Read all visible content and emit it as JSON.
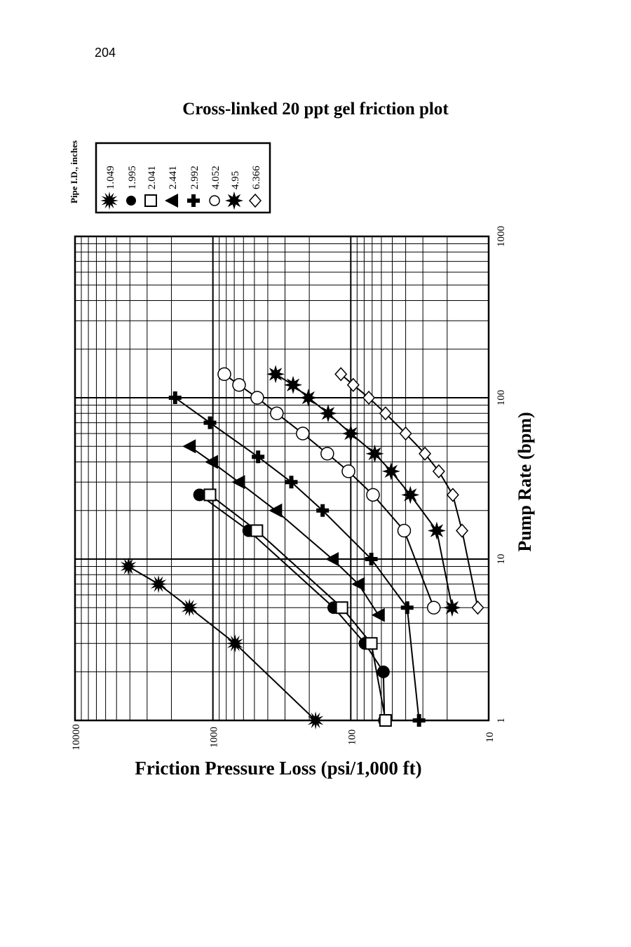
{
  "page_number": "204",
  "chart_data": {
    "type": "line",
    "title": "Cross-linked 20 ppt gel friction plot",
    "x_label": "Pump Rate (bpm)",
    "y_label": "Friction Pressure Loss (psi/1,000 ft)",
    "legend_title": "Pipe I.D., inches",
    "log_scale": true,
    "grid": true,
    "xlim": [
      1,
      1000
    ],
    "xticks": [
      1,
      10,
      100,
      1000
    ],
    "ylim": [
      10,
      10000
    ],
    "yticks": [
      10000,
      1000,
      100,
      10
    ],
    "series": [
      {
        "name": "1.049",
        "marker": "star",
        "color": "#000000",
        "x": [
          1,
          3,
          5,
          7,
          9
        ],
        "values": [
          180,
          690,
          1480,
          2480,
          4100
        ]
      },
      {
        "name": "1.995",
        "marker": "circle",
        "color": "#000000",
        "x": [
          1,
          2,
          3,
          5,
          15,
          25
        ],
        "values": [
          57,
          58,
          79,
          133,
          550,
          1250
        ]
      },
      {
        "name": "2.041",
        "marker": "square",
        "color": "#000000",
        "x": [
          1,
          3,
          5,
          15,
          25
        ],
        "values": [
          56,
          71,
          116,
          480,
          1050
        ]
      },
      {
        "name": "2.441",
        "marker": "triangle",
        "color": "#000000",
        "x": [
          4.5,
          7,
          10,
          20,
          30,
          40,
          50
        ],
        "values": [
          63,
          88,
          136,
          350,
          650,
          1020,
          1480
        ]
      },
      {
        "name": "2.992",
        "marker": "cross",
        "color": "#000000",
        "x": [
          1,
          5,
          10,
          20,
          30,
          43,
          70,
          100
        ],
        "values": [
          32,
          39,
          71,
          160,
          270,
          470,
          1050,
          1880
        ]
      },
      {
        "name": "4.052",
        "marker": "open-circle",
        "color": "#000000",
        "x": [
          5,
          15,
          25,
          35,
          45,
          60,
          80,
          100,
          120,
          140
        ],
        "values": [
          25,
          41,
          69,
          104,
          148,
          223,
          344,
          477,
          646,
          826
        ]
      },
      {
        "name": "4.95",
        "marker": "asterisk",
        "color": "#000000",
        "x": [
          5,
          15,
          25,
          35,
          45,
          60,
          80,
          100,
          120,
          140
        ],
        "values": [
          18.4,
          23.8,
          37,
          51,
          67,
          100,
          146,
          203,
          262,
          351
        ]
      },
      {
        "name": "6.366",
        "marker": "diamond",
        "color": "#000000",
        "x": [
          5,
          15,
          25,
          35,
          45,
          60,
          80,
          100,
          120,
          140
        ],
        "values": [
          12,
          15.6,
          18.2,
          23,
          29,
          40,
          56,
          74,
          96,
          118
        ]
      }
    ]
  }
}
